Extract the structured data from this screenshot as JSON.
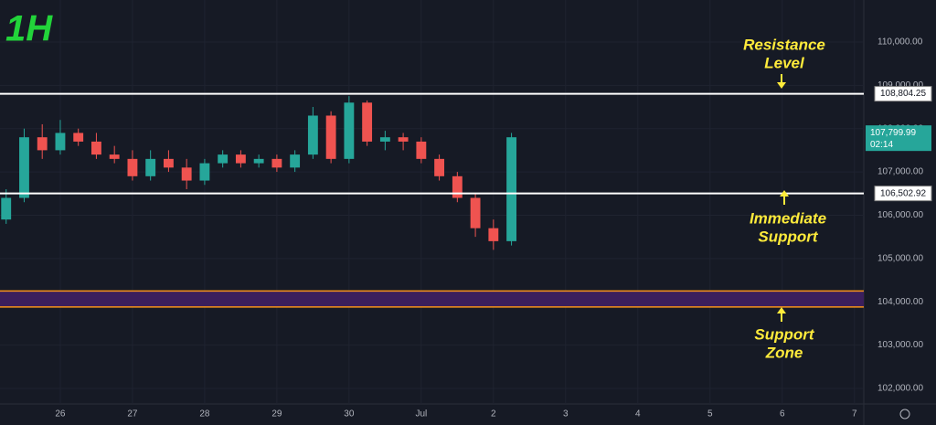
{
  "chart_data": {
    "type": "candlestick",
    "title": "1H",
    "up_color": "#26a69a",
    "down_color": "#ef5350",
    "x": [
      0.25,
      0.5,
      0.75,
      1.0,
      1.25,
      1.5,
      1.75,
      2.0,
      2.25,
      2.5,
      2.75,
      3.0,
      3.25,
      3.5,
      3.75,
      4.0,
      4.25,
      4.5,
      4.75,
      5.0,
      5.25,
      5.5,
      5.75,
      6.0,
      6.25,
      6.5,
      6.75,
      7.0,
      7.25
    ],
    "open": [
      105900,
      106400,
      107800,
      107500,
      107900,
      107700,
      107400,
      107300,
      106900,
      107300,
      107100,
      106800,
      107200,
      107400,
      107200,
      107300,
      107100,
      107400,
      108300,
      107300,
      108600,
      107700,
      107800,
      107700,
      107300,
      106900,
      106400,
      105700,
      105400
    ],
    "high": [
      106600,
      108000,
      108100,
      108200,
      108000,
      107900,
      107600,
      107500,
      107500,
      107500,
      107300,
      107300,
      107500,
      107500,
      107400,
      107400,
      107500,
      108500,
      108400,
      108750,
      108650,
      107950,
      107900,
      107800,
      107400,
      107000,
      106500,
      105900,
      107900
    ],
    "low": [
      105800,
      106300,
      107300,
      107400,
      107600,
      107300,
      107200,
      106800,
      106800,
      107000,
      106600,
      106700,
      107100,
      107100,
      107100,
      107000,
      107000,
      107300,
      107200,
      107200,
      107600,
      107500,
      107500,
      107200,
      106800,
      106300,
      105500,
      105200,
      105300
    ],
    "close": [
      106400,
      107800,
      107500,
      107900,
      107700,
      107400,
      107300,
      106900,
      107300,
      107100,
      106800,
      107200,
      107400,
      107200,
      107300,
      107100,
      107400,
      108300,
      107300,
      108600,
      107700,
      107800,
      107700,
      107300,
      106900,
      106400,
      105700,
      105400,
      107800
    ],
    "xlim": [
      0.165,
      12.13
    ],
    "xticks": [
      {
        "value": 1,
        "label": "26"
      },
      {
        "value": 2,
        "label": "27"
      },
      {
        "value": 3,
        "label": "28"
      },
      {
        "value": 4,
        "label": "29"
      },
      {
        "value": 5,
        "label": "30"
      },
      {
        "value": 6,
        "label": "Jul"
      },
      {
        "value": 7,
        "label": "2"
      },
      {
        "value": 8,
        "label": "3"
      },
      {
        "value": 9,
        "label": "4"
      },
      {
        "value": 10,
        "label": "5"
      },
      {
        "value": 11,
        "label": "6"
      },
      {
        "value": 12,
        "label": "7"
      }
    ],
    "ylim": [
      101640,
      110970
    ],
    "yticks": [
      {
        "value": 102000,
        "label": "102,000.00"
      },
      {
        "value": 103000,
        "label": "103,000.00"
      },
      {
        "value": 104000,
        "label": "104,000.00"
      },
      {
        "value": 105000,
        "label": "105,000.00"
      },
      {
        "value": 106000,
        "label": "106,000.00"
      },
      {
        "value": 107000,
        "label": "107,000.00"
      },
      {
        "value": 108000,
        "label": "108,000.00"
      },
      {
        "value": 109000,
        "label": "109,000.00"
      },
      {
        "value": 110000,
        "label": "110,000.00"
      }
    ],
    "levels": [
      {
        "value": 108804.25,
        "label": "108,804.25"
      },
      {
        "value": 106502.92,
        "label": "106,502.92"
      }
    ],
    "zone": [
      103880,
      104250
    ],
    "last_price": {
      "value": 107799.99,
      "label": "107,799.99"
    },
    "countdown": "02:14",
    "annotations": [
      [
        "Resistance",
        "Level"
      ],
      [
        "Immediate",
        "Support"
      ],
      [
        "Support",
        "Zone"
      ]
    ]
  }
}
